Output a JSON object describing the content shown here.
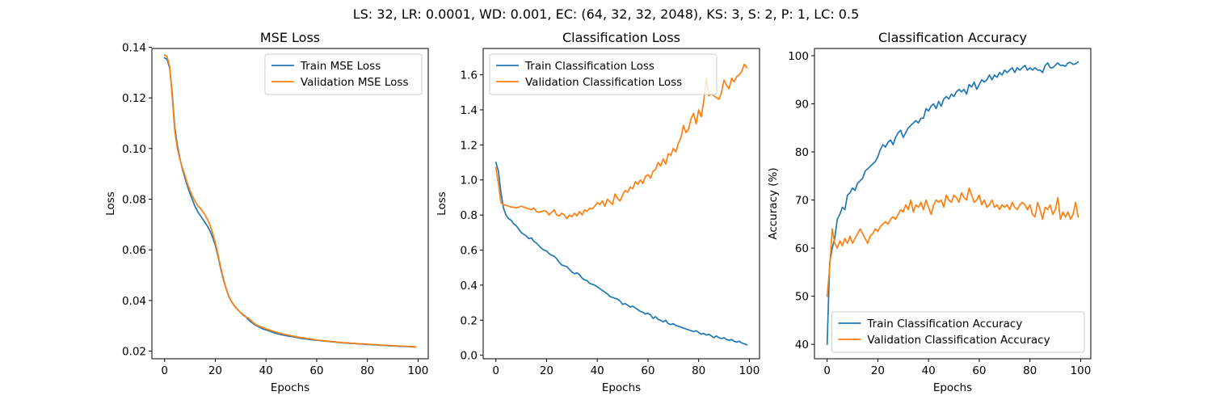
{
  "figure": {
    "suptitle": "LS: 32, LR: 0.0001, WD: 0.001, EC: (64, 32, 32, 2048), KS: 3, S: 2, P: 1, LC: 0.5"
  },
  "chart_data": [
    {
      "type": "line",
      "title": "MSE Loss",
      "xlabel": "Epochs",
      "ylabel": "Loss",
      "xlim": [
        -5,
        104
      ],
      "ylim": [
        0.017,
        0.1395
      ],
      "xticks": [
        0,
        20,
        40,
        60,
        80,
        100
      ],
      "yticks": [
        0.02,
        0.04,
        0.06,
        0.08,
        0.1,
        0.12,
        0.14
      ],
      "yticklabels": [
        "0.02",
        "0.04",
        "0.06",
        "0.08",
        "0.10",
        "0.12",
        "0.14"
      ],
      "legend": "top-right",
      "x_start": 0,
      "x_step": 1,
      "series": [
        {
          "name": "Train MSE Loss",
          "color": "#1f77b4",
          "values": [
            0.1358,
            0.1352,
            0.1318,
            0.122,
            0.1085,
            0.1015,
            0.0962,
            0.092,
            0.0885,
            0.0852,
            0.0822,
            0.0797,
            0.0772,
            0.0752,
            0.0737,
            0.0722,
            0.0707,
            0.0692,
            0.0673,
            0.0648,
            0.0618,
            0.0578,
            0.0532,
            0.049,
            0.0455,
            0.0425,
            0.0402,
            0.0386,
            0.0373,
            0.0362,
            0.0352,
            0.0344,
            0.0337,
            0.0325,
            0.0316,
            0.0308,
            0.0302,
            0.0297,
            0.0292,
            0.0287,
            0.0284,
            0.0281,
            0.0277,
            0.0273,
            0.027,
            0.0268,
            0.0265,
            0.0263,
            0.0261,
            0.0259,
            0.0258,
            0.0256,
            0.0254,
            0.0252,
            0.025,
            0.0249,
            0.0248,
            0.0246,
            0.0245,
            0.0244,
            0.0243,
            0.0242,
            0.0241,
            0.024,
            0.0239,
            0.0238,
            0.0237,
            0.0236,
            0.0235,
            0.0234,
            0.0233,
            0.0232,
            0.0232,
            0.0231,
            0.023,
            0.023,
            0.0229,
            0.0228,
            0.0228,
            0.0227,
            0.0226,
            0.0226,
            0.0225,
            0.0225,
            0.0224,
            0.0223,
            0.0223,
            0.0222,
            0.0222,
            0.0221,
            0.0221,
            0.022,
            0.022,
            0.0219,
            0.0219,
            0.0218,
            0.0218,
            0.0217,
            0.0217,
            0.0216
          ]
        },
        {
          "name": "Validation MSE Loss",
          "color": "#ff7f0e",
          "values": [
            0.137,
            0.1362,
            0.1325,
            0.1205,
            0.107,
            0.1002,
            0.0958,
            0.0925,
            0.0895,
            0.0862,
            0.0835,
            0.0812,
            0.0792,
            0.0775,
            0.0765,
            0.0752,
            0.0737,
            0.0718,
            0.0695,
            0.0665,
            0.0628,
            0.0585,
            0.0538,
            0.0495,
            0.0457,
            0.0426,
            0.0403,
            0.0387,
            0.0374,
            0.0363,
            0.0351,
            0.0342,
            0.0335,
            0.0331,
            0.0322,
            0.0312,
            0.0305,
            0.03,
            0.0296,
            0.0292,
            0.0288,
            0.0285,
            0.0282,
            0.0278,
            0.0275,
            0.0272,
            0.027,
            0.0267,
            0.0265,
            0.0263,
            0.0261,
            0.0259,
            0.0257,
            0.0255,
            0.0253,
            0.0252,
            0.025,
            0.0249,
            0.0247,
            0.0246,
            0.0244,
            0.0243,
            0.0242,
            0.0241,
            0.024,
            0.0239,
            0.0238,
            0.0237,
            0.0236,
            0.0235,
            0.0234,
            0.0233,
            0.0233,
            0.0232,
            0.0231,
            0.0231,
            0.023,
            0.0229,
            0.0229,
            0.0228,
            0.0227,
            0.0227,
            0.0226,
            0.0226,
            0.0225,
            0.0224,
            0.0224,
            0.0223,
            0.0223,
            0.0222,
            0.0222,
            0.0221,
            0.0221,
            0.022,
            0.022,
            0.0219,
            0.0219,
            0.0218,
            0.0218,
            0.0217
          ]
        }
      ]
    },
    {
      "type": "line",
      "title": "Classification Loss",
      "xlabel": "Epochs",
      "ylabel": "Loss",
      "xlim": [
        -5,
        104
      ],
      "ylim": [
        -0.02,
        1.75
      ],
      "xticks": [
        0,
        20,
        40,
        60,
        80,
        100
      ],
      "yticks": [
        0.0,
        0.2,
        0.4,
        0.6,
        0.8,
        1.0,
        1.2,
        1.4,
        1.6
      ],
      "yticklabels": [
        "0.0",
        "0.2",
        "0.4",
        "0.6",
        "0.8",
        "1.0",
        "1.2",
        "1.4",
        "1.6"
      ],
      "legend": "top-left",
      "x_start": 0,
      "x_step": 1,
      "series": [
        {
          "name": "Train Classification Loss",
          "color": "#1f77b4",
          "values": [
            1.1,
            1.05,
            0.93,
            0.84,
            0.8,
            0.78,
            0.77,
            0.75,
            0.74,
            0.72,
            0.7,
            0.69,
            0.68,
            0.665,
            0.67,
            0.65,
            0.64,
            0.625,
            0.61,
            0.6,
            0.595,
            0.58,
            0.57,
            0.565,
            0.55,
            0.53,
            0.515,
            0.51,
            0.505,
            0.49,
            0.475,
            0.465,
            0.47,
            0.46,
            0.44,
            0.43,
            0.425,
            0.41,
            0.405,
            0.4,
            0.39,
            0.38,
            0.37,
            0.36,
            0.35,
            0.335,
            0.33,
            0.325,
            0.32,
            0.31,
            0.29,
            0.295,
            0.285,
            0.275,
            0.28,
            0.27,
            0.26,
            0.25,
            0.245,
            0.235,
            0.24,
            0.23,
            0.21,
            0.22,
            0.205,
            0.2,
            0.19,
            0.2,
            0.18,
            0.175,
            0.18,
            0.17,
            0.165,
            0.16,
            0.155,
            0.15,
            0.145,
            0.14,
            0.135,
            0.14,
            0.13,
            0.12,
            0.125,
            0.115,
            0.12,
            0.11,
            0.1,
            0.11,
            0.1,
            0.095,
            0.1,
            0.09,
            0.085,
            0.09,
            0.08,
            0.075,
            0.08,
            0.07,
            0.065,
            0.06
          ]
        },
        {
          "name": "Validation Classification Loss",
          "color": "#ff7f0e",
          "values": [
            1.07,
            0.98,
            0.87,
            0.86,
            0.855,
            0.85,
            0.845,
            0.845,
            0.84,
            0.845,
            0.85,
            0.845,
            0.84,
            0.835,
            0.83,
            0.84,
            0.82,
            0.815,
            0.82,
            0.825,
            0.82,
            0.8,
            0.815,
            0.83,
            0.8,
            0.795,
            0.81,
            0.8,
            0.78,
            0.8,
            0.79,
            0.81,
            0.795,
            0.82,
            0.8,
            0.83,
            0.82,
            0.84,
            0.835,
            0.85,
            0.87,
            0.86,
            0.88,
            0.85,
            0.89,
            0.875,
            0.86,
            0.92,
            0.895,
            0.88,
            0.915,
            0.94,
            0.93,
            0.96,
            0.95,
            0.99,
            0.975,
            1.0,
            0.98,
            1.02,
            1.03,
            1.01,
            1.05,
            1.06,
            1.1,
            1.08,
            1.12,
            1.09,
            1.15,
            1.14,
            1.18,
            1.16,
            1.21,
            1.24,
            1.31,
            1.27,
            1.29,
            1.35,
            1.38,
            1.32,
            1.4,
            1.36,
            1.45,
            1.58,
            1.48,
            1.49,
            1.48,
            1.47,
            1.46,
            1.5,
            1.57,
            1.54,
            1.52,
            1.58,
            1.56,
            1.59,
            1.6,
            1.62,
            1.66,
            1.64
          ]
        }
      ]
    },
    {
      "type": "line",
      "title": "Classification Accuracy",
      "xlabel": "Epochs",
      "ylabel": "Accuracy (%)",
      "xlim": [
        -5,
        104
      ],
      "ylim": [
        37,
        101.5
      ],
      "xticks": [
        0,
        20,
        40,
        60,
        80,
        100
      ],
      "yticks": [
        40,
        50,
        60,
        70,
        80,
        90,
        100
      ],
      "yticklabels": [
        "40",
        "50",
        "60",
        "70",
        "80",
        "90",
        "100"
      ],
      "legend": "bottom-right",
      "x_start": 0,
      "x_step": 1,
      "series": [
        {
          "name": "Train Classification Accuracy",
          "color": "#1f77b4",
          "values": [
            40.0,
            57.0,
            60.0,
            62.0,
            66.0,
            67.0,
            68.5,
            68.0,
            71.0,
            71.5,
            72.5,
            72.0,
            73.5,
            74.0,
            74.5,
            76.0,
            76.5,
            77.0,
            77.5,
            78.0,
            79.0,
            80.5,
            81.5,
            81.0,
            82.0,
            82.5,
            81.5,
            83.0,
            84.0,
            84.5,
            83.0,
            84.0,
            85.0,
            85.5,
            86.0,
            86.5,
            86.0,
            87.0,
            87.0,
            89.0,
            88.5,
            89.5,
            90.0,
            89.0,
            90.5,
            89.5,
            91.0,
            91.5,
            91.0,
            92.0,
            91.5,
            92.5,
            93.0,
            92.5,
            93.0,
            92.0,
            94.0,
            93.5,
            94.5,
            93.0,
            94.0,
            95.0,
            94.5,
            95.0,
            96.0,
            95.0,
            96.0,
            95.5,
            96.5,
            96.0,
            97.0,
            96.5,
            97.0,
            97.5,
            96.5,
            97.5,
            97.0,
            97.5,
            98.0,
            97.0,
            97.5,
            97.0,
            97.5,
            97.0,
            97.0,
            96.5,
            98.0,
            98.5,
            97.5,
            97.5,
            98.0,
            98.5,
            98.0,
            98.0,
            97.8,
            98.5,
            98.6,
            98.2,
            98.3,
            98.7
          ]
        },
        {
          "name": "Validation Classification Accuracy",
          "color": "#ff7f0e",
          "values": [
            50.0,
            56.0,
            64.0,
            61.0,
            60.0,
            61.5,
            60.5,
            62.0,
            61.0,
            62.5,
            61.0,
            62.0,
            63.0,
            64.0,
            63.0,
            62.0,
            61.0,
            62.5,
            63.0,
            64.0,
            63.5,
            64.5,
            65.0,
            65.5,
            65.0,
            66.0,
            66.5,
            66.0,
            67.0,
            68.0,
            67.5,
            69.0,
            68.0,
            70.0,
            67.5,
            69.0,
            68.5,
            69.5,
            68.0,
            70.0,
            68.5,
            67.0,
            69.0,
            70.0,
            69.5,
            70.0,
            68.5,
            71.0,
            70.0,
            69.5,
            71.0,
            70.5,
            69.5,
            71.5,
            70.5,
            70.0,
            72.5,
            71.0,
            69.5,
            70.0,
            71.0,
            69.0,
            70.0,
            68.5,
            69.0,
            70.0,
            68.5,
            69.0,
            68.0,
            69.0,
            68.5,
            69.0,
            68.0,
            69.5,
            68.5,
            68.0,
            69.0,
            69.5,
            69.0,
            68.0,
            69.0,
            67.0,
            66.5,
            69.5,
            68.0,
            66.0,
            68.5,
            68.0,
            69.0,
            67.0,
            68.0,
            70.5,
            66.0,
            67.5,
            66.5,
            67.5,
            66.0,
            67.0,
            69.5,
            66.5
          ]
        }
      ]
    }
  ]
}
